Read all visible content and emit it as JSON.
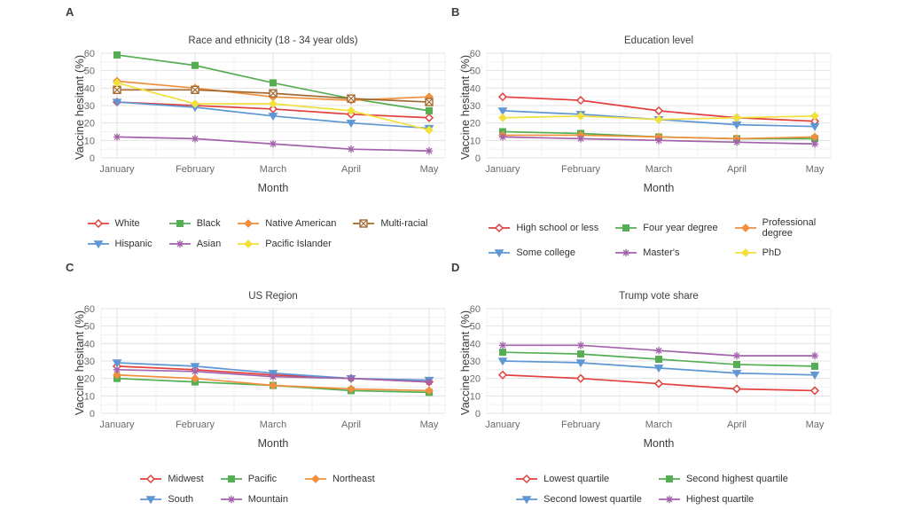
{
  "figure": {
    "xlabel": "Month",
    "ylabel": "Vaccine hesitant (%)",
    "months": [
      "January",
      "February",
      "March",
      "April",
      "May"
    ],
    "yticks": [
      0,
      10,
      20,
      30,
      40,
      50,
      60
    ]
  },
  "colors": {
    "red": "#e2403e",
    "green": "#55ae52",
    "orange": "#f0903e",
    "brown": "#a4682f",
    "blue": "#5e97d3",
    "purple": "#a263ab",
    "yellow": "#f2e03c",
    "grid_major": "#e3e3e3",
    "grid_minor": "#f1f1f1",
    "tick_text": "#6b6b6b",
    "title_text": "#3e3e3e"
  },
  "chart_data": [
    {
      "panel": "A",
      "type": "line",
      "title": "Race and ethnicity (18 - 34 year olds)",
      "xlabel": "Month",
      "ylabel": "Vaccine hesitant (%)",
      "categories": [
        "January",
        "February",
        "March",
        "April",
        "May"
      ],
      "ylim": [
        0,
        60
      ],
      "grid": true,
      "legend_position": "bottom",
      "legend_columns": 4,
      "series": [
        {
          "name": "White",
          "color": "red",
          "marker": "diamond-open",
          "values": [
            32,
            30,
            28,
            25,
            23
          ]
        },
        {
          "name": "Black",
          "color": "green",
          "marker": "square",
          "values": [
            59,
            53,
            43,
            34,
            27
          ]
        },
        {
          "name": "Native American",
          "color": "orange",
          "marker": "diamond",
          "values": [
            44,
            40,
            35,
            33,
            35
          ]
        },
        {
          "name": "Multi-racial",
          "color": "brown",
          "marker": "square-x",
          "values": [
            39,
            39,
            37,
            34,
            32
          ]
        },
        {
          "name": "Hispanic",
          "color": "blue",
          "marker": "triangle-down",
          "values": [
            32,
            29,
            24,
            20,
            17
          ]
        },
        {
          "name": "Asian",
          "color": "purple",
          "marker": "asterisk",
          "values": [
            12,
            11,
            8,
            5,
            4
          ]
        },
        {
          "name": "Pacific Islander",
          "color": "yellow",
          "marker": "diamond",
          "values": [
            43,
            31,
            31,
            27,
            16
          ]
        }
      ]
    },
    {
      "panel": "B",
      "type": "line",
      "title": "Education level",
      "xlabel": "Month",
      "ylabel": "Vaccine hesitant (%)",
      "categories": [
        "January",
        "February",
        "March",
        "April",
        "May"
      ],
      "ylim": [
        0,
        60
      ],
      "grid": true,
      "legend_position": "bottom",
      "legend_columns": 3,
      "series": [
        {
          "name": "High school or less",
          "color": "red",
          "marker": "diamond-open",
          "values": [
            35,
            33,
            27,
            23,
            21
          ]
        },
        {
          "name": "Four year degree",
          "color": "green",
          "marker": "square",
          "values": [
            15,
            14,
            12,
            11,
            11
          ]
        },
        {
          "name": "Professional degree",
          "color": "orange",
          "marker": "diamond",
          "values": [
            13,
            13,
            12,
            11,
            12
          ],
          "wrap_label": true
        },
        {
          "name": "Some college",
          "color": "blue",
          "marker": "triangle-down",
          "values": [
            27,
            25,
            22,
            19,
            18
          ]
        },
        {
          "name": "Master's",
          "color": "purple",
          "marker": "asterisk",
          "values": [
            12,
            11,
            10,
            9,
            8
          ]
        },
        {
          "name": "PhD",
          "color": "yellow",
          "marker": "diamond",
          "values": [
            23,
            24,
            22,
            23,
            24
          ]
        }
      ]
    },
    {
      "panel": "C",
      "type": "line",
      "title": "US Region",
      "xlabel": "Month",
      "ylabel": "Vaccine hesitant (%)",
      "categories": [
        "January",
        "February",
        "March",
        "April",
        "May"
      ],
      "ylim": [
        0,
        60
      ],
      "grid": true,
      "legend_position": "bottom",
      "legend_columns": 3,
      "series": [
        {
          "name": "Midwest",
          "color": "red",
          "marker": "diamond-open",
          "values": [
            27,
            25,
            22,
            20,
            18
          ]
        },
        {
          "name": "Pacific",
          "color": "green",
          "marker": "square",
          "values": [
            20,
            18,
            16,
            13,
            12
          ]
        },
        {
          "name": "Northeast",
          "color": "orange",
          "marker": "diamond",
          "values": [
            22,
            20,
            16,
            14,
            13
          ]
        },
        {
          "name": "South",
          "color": "blue",
          "marker": "triangle-down",
          "values": [
            29,
            27,
            23,
            20,
            19
          ]
        },
        {
          "name": "Mountain",
          "color": "purple",
          "marker": "asterisk",
          "values": [
            25,
            24,
            21,
            20,
            18
          ]
        }
      ]
    },
    {
      "panel": "D",
      "type": "line",
      "title": "Trump vote share",
      "xlabel": "Month",
      "ylabel": "Vaccine hesitant (%)",
      "categories": [
        "January",
        "February",
        "March",
        "April",
        "May"
      ],
      "ylim": [
        0,
        60
      ],
      "grid": true,
      "legend_position": "bottom",
      "legend_columns": 2,
      "series": [
        {
          "name": "Lowest quartile",
          "color": "red",
          "marker": "diamond-open",
          "values": [
            22,
            20,
            17,
            14,
            13
          ]
        },
        {
          "name": "Second highest quartile",
          "color": "green",
          "marker": "square",
          "values": [
            35,
            34,
            31,
            28,
            27
          ]
        },
        {
          "name": "Second lowest quartile",
          "color": "blue",
          "marker": "triangle-down",
          "values": [
            30,
            29,
            26,
            23,
            22
          ]
        },
        {
          "name": "Highest quartile",
          "color": "purple",
          "marker": "asterisk",
          "values": [
            39,
            39,
            36,
            33,
            33
          ]
        }
      ]
    }
  ]
}
